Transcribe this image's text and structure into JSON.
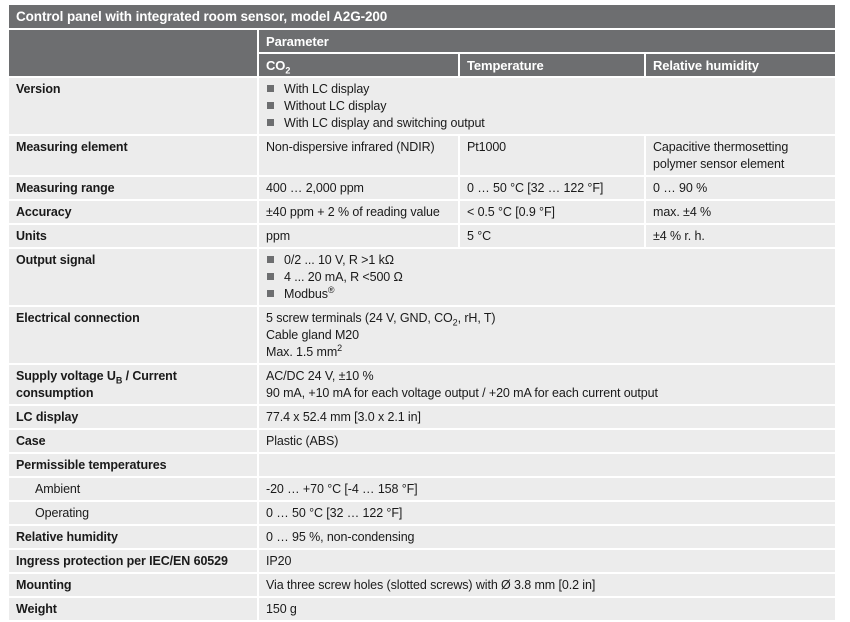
{
  "title": "Control panel with integrated room sensor, model A2G-200",
  "header": {
    "parameter": "Parameter",
    "co2": "CO",
    "co2_sub": "2",
    "temperature": "Temperature",
    "humidity": "Relative humidity"
  },
  "rows": {
    "version": {
      "label": "Version",
      "items": [
        "With LC display",
        "Without LC display",
        "With LC display and switching output"
      ]
    },
    "measuring_element": {
      "label": "Measuring element",
      "co2": "Non-dispersive infrared (NDIR)",
      "temp": "Pt1000",
      "rh": [
        "Capacitive thermosetting",
        "polymer sensor element"
      ]
    },
    "measuring_range": {
      "label": "Measuring range",
      "co2": "400 … 2,000 ppm",
      "temp": "0 … 50 °C [32 … 122 °F]",
      "rh": "0 … 90 %"
    },
    "accuracy": {
      "label": "Accuracy",
      "co2": "±40 ppm + 2 % of reading value",
      "temp": "< 0.5 °C [0.9 °F]",
      "rh": "max. ±4 %"
    },
    "units": {
      "label": "Units",
      "co2": "ppm",
      "temp": "5 °C",
      "rh": "±4 % r. h."
    },
    "output": {
      "label": "Output signal",
      "items": [
        "0/2 ... 10 V, R >1 kΩ",
        "4 ... 20 mA, R <500 Ω",
        "Modbus"
      ],
      "reg": "®"
    },
    "electrical": {
      "label": "Electrical connection",
      "line1a": "5 screw terminals (24 V, GND, CO",
      "line1sub": "2",
      "line1b": ", rH, T)",
      "line2": "Cable gland M20",
      "line3": "Max. 1.5 mm",
      "line3sup": "2"
    },
    "supply": {
      "label_a": "Supply voltage U",
      "label_sub": "B",
      "label_b": " / Current",
      "label_c": "consumption",
      "line1": "AC/DC 24 V, ±10 %",
      "line2": "90 mA, +10 mA for each voltage output / +20 mA for each current output"
    },
    "lc_display": {
      "label": "LC display",
      "value": "77.4 x 52.4 mm [3.0 x 2.1 in]"
    },
    "case": {
      "label": "Case",
      "value": "Plastic (ABS)"
    },
    "perm_temps": {
      "label": "Permissible temperatures"
    },
    "ambient": {
      "label": "Ambient",
      "value": "-20 … +70 °C [-4 … 158 °F]"
    },
    "operating": {
      "label": "Operating",
      "value": "0 … 50 °C [32 … 122 °F]"
    },
    "rel_humidity": {
      "label": "Relative humidity",
      "value": "0 … 95 %, non-condensing"
    },
    "ingress": {
      "label": "Ingress protection per IEC/EN 60529",
      "value": "IP20"
    },
    "mounting": {
      "label": "Mounting",
      "value": "Via three screw holes (slotted screws) with Ø 3.8 mm [0.2 in]"
    },
    "weight": {
      "label": "Weight",
      "value": "150 g"
    }
  }
}
